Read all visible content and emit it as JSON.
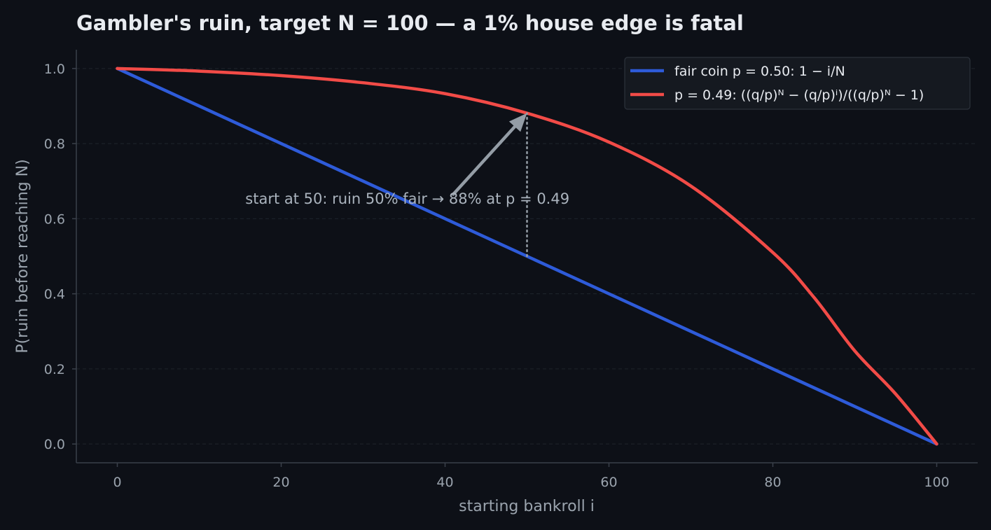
{
  "chart_data": {
    "type": "line",
    "title": "Gambler's ruin, target N = 100 — a 1% house edge is fatal",
    "xlabel": "starting bankroll i",
    "ylabel": "P(ruin before reaching N)",
    "xlim": [
      -5,
      105
    ],
    "ylim": [
      -0.05,
      1.05
    ],
    "xticks": [
      0,
      20,
      40,
      60,
      80,
      100
    ],
    "xtick_labels": [
      "0",
      "20",
      "40",
      "60",
      "80",
      "100"
    ],
    "yticks": [
      0.0,
      0.2,
      0.4,
      0.6,
      0.8,
      1.0
    ],
    "ytick_labels": [
      "0.0",
      "0.2",
      "0.4",
      "0.6",
      "0.8",
      "1.0"
    ],
    "grid": "horizontal dashed",
    "legend_position": "top-right",
    "series": [
      {
        "name": "fair coin p = 0.50: 1 − i/N",
        "color": "#2e5bd9",
        "x": [
          0,
          10,
          20,
          30,
          40,
          50,
          60,
          70,
          80,
          90,
          100
        ],
        "y": [
          1.0,
          0.9,
          0.8,
          0.7,
          0.6,
          0.5,
          0.4,
          0.3,
          0.2,
          0.1,
          0.0
        ]
      },
      {
        "name": "p = 0.49: ((q/p)ᴺ − (q/p)ⁱ)/((q/p)ᴺ − 1)",
        "color": "#f24b47",
        "x": [
          0,
          10,
          20,
          30,
          40,
          50,
          60,
          70,
          80,
          85,
          90,
          95,
          100
        ],
        "y": [
          1.0,
          0.993,
          0.981,
          0.962,
          0.933,
          0.881,
          0.804,
          0.687,
          0.51,
          0.391,
          0.248,
          0.133,
          0.0
        ]
      }
    ],
    "annotation": {
      "text": "start at 50: ruin 50% fair → 88% at p = 0.49",
      "x": 50,
      "y_low": 0.5,
      "y_high": 0.881,
      "text_x": 35.4,
      "text_y": 0.64,
      "arrow_start_x": 41,
      "arrow_start_y": 0.665
    },
    "colors": {
      "background": "#0d1017",
      "axis": "#3a404a",
      "grid": "#1f242c",
      "annotation": "#949da6"
    }
  }
}
